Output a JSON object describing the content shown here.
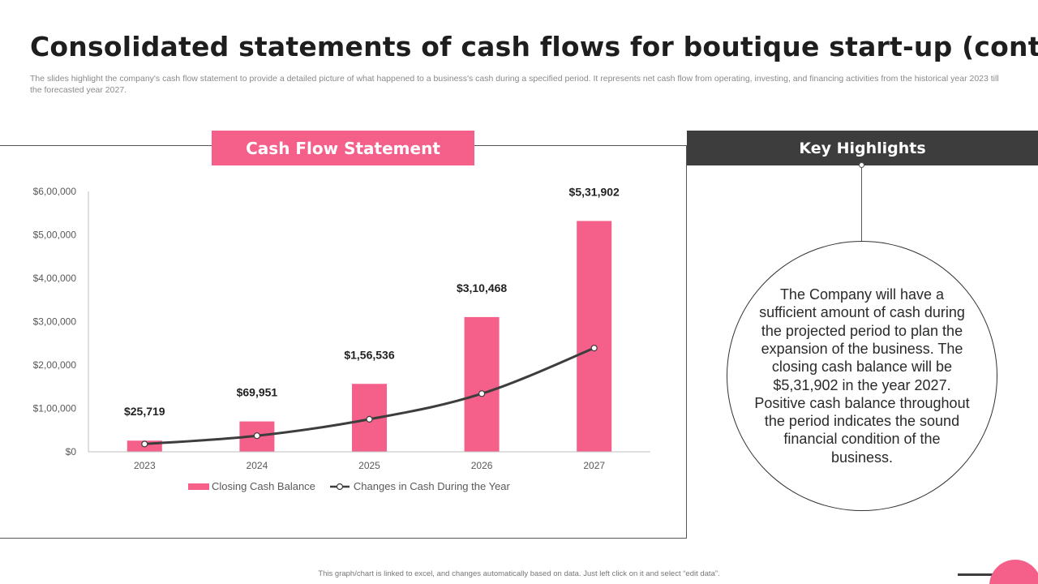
{
  "header": {
    "title": "Consolidated statements of cash flows for boutique start-up (cont.)",
    "subtitle": "The slides highlight the company's cash flow statement to provide a detailed picture of what happened to a business's cash during a specified period. It represents net cash flow from operating, investing, and financing activities from the historical year 2023 till the forecasted year 2027."
  },
  "chart_panel": {
    "banner": "Cash Flow Statement"
  },
  "chart_data": {
    "type": "bar",
    "categories": [
      "2023",
      "2024",
      "2025",
      "2026",
      "2027"
    ],
    "series": [
      {
        "name": "Closing Cash Balance",
        "kind": "bar",
        "values": [
          25719,
          69951,
          156536,
          310468,
          531902
        ],
        "labels": [
          "$25,719",
          "$69,951",
          "$1,56,536",
          "$3,10,468",
          "$5,31,902"
        ],
        "color": "#f4608a"
      },
      {
        "name": "Changes in Cash During the Year",
        "kind": "line",
        "values": [
          18000,
          37000,
          75000,
          134000,
          239000
        ],
        "color": "#3d3d3d"
      }
    ],
    "y_ticks": [
      0,
      100000,
      200000,
      300000,
      400000,
      500000,
      600000
    ],
    "y_tick_labels": [
      "$0",
      "$1,00,000",
      "$2,00,000",
      "$3,00,000",
      "$4,00,000",
      "$5,00,000",
      "$6,00,000"
    ],
    "ylim": [
      0,
      600000
    ],
    "grid": false,
    "legend_position": "bottom",
    "xlabel": "",
    "ylabel": ""
  },
  "key_highlights": {
    "banner": "Key Highlights",
    "text": "The Company will have a sufficient amount of cash during the projected period to plan the expansion of the business. The closing cash balance will be $5,31,902 in the year 2027. Positive cash balance throughout the period indicates the sound financial condition of the business."
  },
  "footer": {
    "note": "This graph/chart is linked to excel, and changes automatically based on data. Just left click on it and select “edit data”."
  }
}
